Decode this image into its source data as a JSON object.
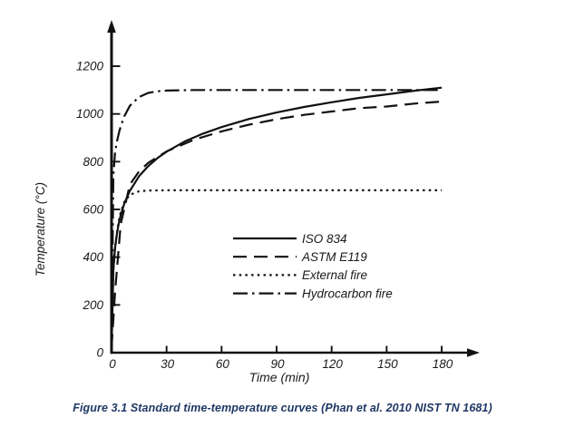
{
  "figure": {
    "caption": "Figure 3.1 Standard time-temperature curves (Phan et al. 2010 NIST TN 1681)",
    "caption_color": "#1f3864"
  },
  "chart_data": {
    "type": "line",
    "title": "",
    "xlabel": "Time (min)",
    "ylabel": "Temperature (°C)",
    "xlim": [
      0,
      180
    ],
    "ylim": [
      0,
      1200
    ],
    "x_ticks": [
      0,
      30,
      60,
      90,
      120,
      150,
      180
    ],
    "y_ticks": [
      0,
      200,
      400,
      600,
      800,
      1000,
      1200
    ],
    "grid": false,
    "legend_position": "center-right",
    "line_color": "#111111",
    "series": [
      {
        "name": "ISO 834",
        "style": "solid",
        "points": [
          [
            0,
            20
          ],
          [
            1,
            349
          ],
          [
            2,
            444
          ],
          [
            3,
            502
          ],
          [
            4,
            544
          ],
          [
            5,
            576
          ],
          [
            7,
            626
          ],
          [
            10,
            678
          ],
          [
            15,
            739
          ],
          [
            20,
            781
          ],
          [
            25,
            815
          ],
          [
            30,
            842
          ],
          [
            40,
            885
          ],
          [
            50,
            918
          ],
          [
            60,
            945
          ],
          [
            75,
            979
          ],
          [
            90,
            1006
          ],
          [
            105,
            1029
          ],
          [
            120,
            1049
          ],
          [
            135,
            1067
          ],
          [
            150,
            1082
          ],
          [
            165,
            1097
          ],
          [
            180,
            1110
          ]
        ]
      },
      {
        "name": "ASTM E119",
        "style": "dashed",
        "points": [
          [
            0,
            20
          ],
          [
            2,
            261
          ],
          [
            5,
            538
          ],
          [
            10,
            704
          ],
          [
            15,
            759
          ],
          [
            20,
            795
          ],
          [
            30,
            843
          ],
          [
            45,
            892
          ],
          [
            60,
            927
          ],
          [
            75,
            955
          ],
          [
            90,
            978
          ],
          [
            105,
            996
          ],
          [
            120,
            1010
          ],
          [
            135,
            1024
          ],
          [
            150,
            1031
          ],
          [
            165,
            1043
          ],
          [
            180,
            1052
          ]
        ]
      },
      {
        "name": "External fire",
        "style": "dotted",
        "points": [
          [
            0,
            20
          ],
          [
            1,
            346
          ],
          [
            2,
            441
          ],
          [
            3,
            506
          ],
          [
            4,
            554
          ],
          [
            5,
            588
          ],
          [
            7,
            632
          ],
          [
            10,
            661
          ],
          [
            15,
            676
          ],
          [
            20,
            679
          ],
          [
            30,
            680
          ],
          [
            60,
            680
          ],
          [
            90,
            680
          ],
          [
            120,
            680
          ],
          [
            150,
            680
          ],
          [
            180,
            680
          ]
        ]
      },
      {
        "name": "Hydrocarbon fire",
        "style": "dashdot",
        "points": [
          [
            0,
            20
          ],
          [
            1,
            743
          ],
          [
            2,
            844
          ],
          [
            3,
            887
          ],
          [
            4,
            920
          ],
          [
            5,
            948
          ],
          [
            7,
            991
          ],
          [
            10,
            1034
          ],
          [
            15,
            1071
          ],
          [
            20,
            1088
          ],
          [
            25,
            1095
          ],
          [
            30,
            1098
          ],
          [
            45,
            1100
          ],
          [
            60,
            1100
          ],
          [
            90,
            1100
          ],
          [
            120,
            1100
          ],
          [
            150,
            1100
          ],
          [
            180,
            1100
          ]
        ]
      }
    ]
  }
}
